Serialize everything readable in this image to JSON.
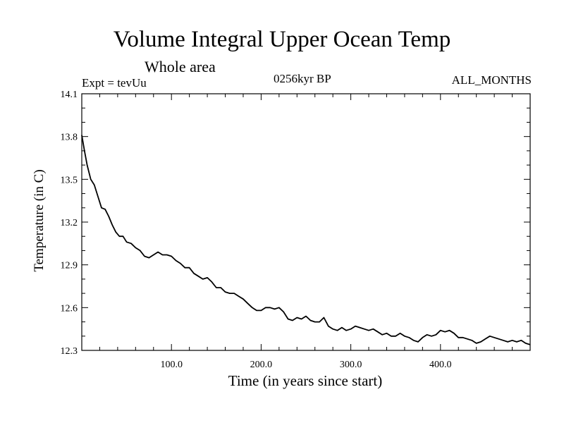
{
  "chart_data": {
    "type": "line",
    "title": "Volume Integral Upper Ocean Temp",
    "subtitle": "Whole area",
    "experiment_label": "Expt = tevUu",
    "era_label": "0256kyr BP",
    "months_label": "ALL_MONTHS",
    "xlabel": "Time (in years since start)",
    "ylabel": "Temperature (in C)",
    "xlim": [
      0,
      500
    ],
    "ylim": [
      12.3,
      14.1
    ],
    "x_ticks": [
      100,
      200,
      300,
      400
    ],
    "x_tick_labels": [
      "100.0",
      "200.0",
      "300.0",
      "400.0"
    ],
    "y_ticks": [
      12.3,
      12.6,
      12.9,
      13.2,
      13.5,
      13.8,
      14.1
    ],
    "y_tick_labels": [
      "12.3",
      "12.6",
      "12.9",
      "13.2",
      "13.5",
      "13.8",
      "14.1"
    ],
    "grid": false,
    "legend": "none",
    "line_color": "#000000",
    "series": [
      {
        "x": [
          0,
          3,
          6,
          10,
          14,
          18,
          22,
          26,
          30,
          34,
          38,
          42,
          46,
          50,
          55,
          60,
          65,
          70,
          75,
          80,
          85,
          90,
          95,
          100,
          105,
          110,
          115,
          120,
          125,
          130,
          135,
          140,
          145,
          150,
          155,
          160,
          165,
          170,
          175,
          180,
          185,
          190,
          195,
          200,
          205,
          210,
          215,
          220,
          225,
          230,
          235,
          240,
          245,
          250,
          255,
          260,
          265,
          270,
          275,
          280,
          285,
          290,
          295,
          300,
          305,
          310,
          315,
          320,
          325,
          330,
          335,
          340,
          345,
          350,
          355,
          360,
          365,
          370,
          375,
          380,
          385,
          390,
          395,
          400,
          405,
          410,
          415,
          420,
          425,
          430,
          435,
          440,
          445,
          450,
          455,
          460,
          465,
          470,
          475,
          480,
          485,
          490,
          495,
          500
        ],
        "values": [
          13.81,
          13.7,
          13.6,
          13.5,
          13.46,
          13.38,
          13.3,
          13.29,
          13.24,
          13.18,
          13.13,
          13.1,
          13.1,
          13.06,
          13.05,
          13.02,
          13.0,
          12.96,
          12.95,
          12.97,
          12.99,
          12.97,
          12.97,
          12.96,
          12.93,
          12.91,
          12.88,
          12.88,
          12.84,
          12.82,
          12.8,
          12.81,
          12.78,
          12.74,
          12.74,
          12.71,
          12.7,
          12.7,
          12.68,
          12.66,
          12.63,
          12.6,
          12.58,
          12.58,
          12.6,
          12.6,
          12.59,
          12.6,
          12.57,
          12.52,
          12.51,
          12.53,
          12.52,
          12.54,
          12.51,
          12.5,
          12.5,
          12.53,
          12.47,
          12.45,
          12.44,
          12.46,
          12.44,
          12.45,
          12.47,
          12.46,
          12.45,
          12.44,
          12.45,
          12.43,
          12.41,
          12.42,
          12.4,
          12.4,
          12.42,
          12.4,
          12.39,
          12.37,
          12.36,
          12.39,
          12.41,
          12.4,
          12.41,
          12.44,
          12.43,
          12.44,
          12.42,
          12.39,
          12.39,
          12.38,
          12.37,
          12.35,
          12.36,
          12.38,
          12.4,
          12.39,
          12.38,
          12.37,
          12.36,
          12.37,
          12.36,
          12.37,
          12.35,
          12.34
        ]
      }
    ]
  }
}
